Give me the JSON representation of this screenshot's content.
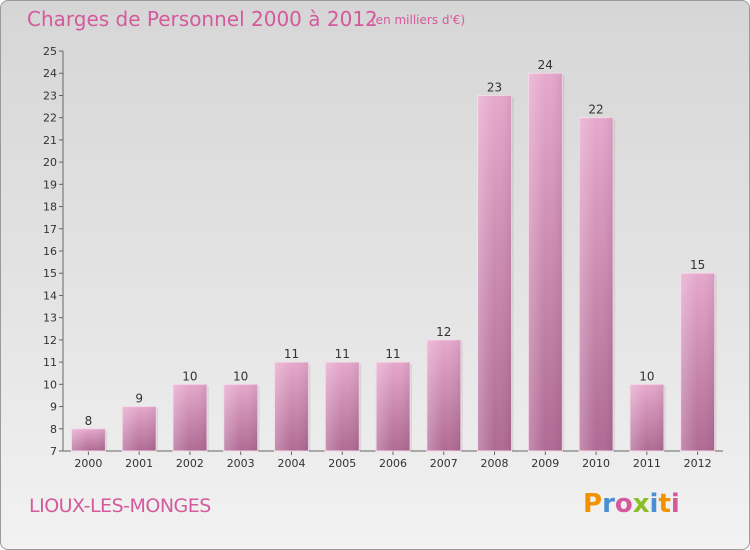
{
  "header": {
    "title": "Charges de Personnel 2000 à 2012",
    "subtitle": "(en milliers d'€)"
  },
  "footer": {
    "place": "LIOUX-LES-MONGES",
    "logo": "Proxiti"
  },
  "colors": {
    "title": "#d45a9c",
    "bar_top": "#e6a8cc",
    "bar_bottom": "#b06a94",
    "logo_letters": [
      "#f39200",
      "#4a8fd3",
      "#d45a9c",
      "#8cbf26",
      "#4a8fd3",
      "#f39200",
      "#d45a9c"
    ]
  },
  "chart_data": {
    "type": "bar",
    "categories": [
      "2000",
      "2001",
      "2002",
      "2003",
      "2004",
      "2005",
      "2006",
      "2007",
      "2008",
      "2009",
      "2010",
      "2011",
      "2012"
    ],
    "values": [
      8,
      9,
      10,
      10,
      11,
      11,
      11,
      12,
      23,
      24,
      22,
      10,
      15
    ],
    "ylim": [
      7,
      25
    ],
    "yticks": [
      7,
      8,
      9,
      10,
      11,
      12,
      13,
      14,
      15,
      16,
      17,
      18,
      19,
      20,
      21,
      22,
      23,
      24,
      25
    ],
    "grid": false,
    "legend": "none"
  }
}
